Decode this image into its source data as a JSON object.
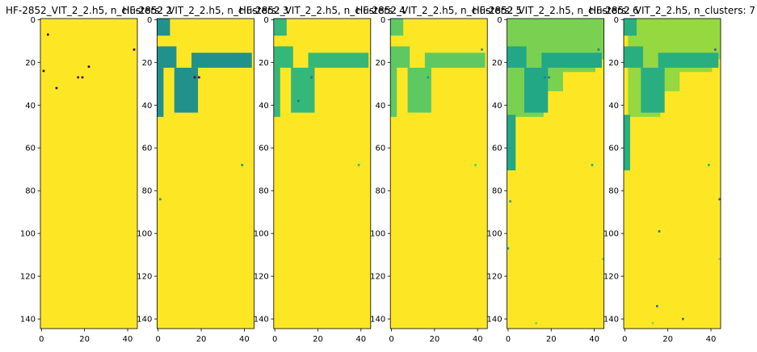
{
  "figure": {
    "background": "#ffffff",
    "colormap": "viridis"
  },
  "chart_data": [
    {
      "type": "heatmap",
      "title": "HF-2852_VIT_2_2.h5, n_clusters: 2",
      "xlabel": "",
      "ylabel": "",
      "xlim": [
        -0.5,
        44.5
      ],
      "ylim": [
        144.5,
        -0.5
      ],
      "x_ticks": [
        0,
        20,
        40
      ],
      "y_ticks": [
        0,
        20,
        40,
        60,
        80,
        100,
        120,
        140
      ],
      "grid": false,
      "n_clusters": 2,
      "background_color": "#fde725",
      "cells": [
        {
          "x": 3,
          "y": 7,
          "color": "#440154"
        },
        {
          "x": 43,
          "y": 14,
          "color": "#440154"
        },
        {
          "x": 22,
          "y": 22,
          "color": "#440154"
        },
        {
          "x": 1,
          "y": 24,
          "color": "#440154"
        },
        {
          "x": 17,
          "y": 27,
          "color": "#440154"
        },
        {
          "x": 19,
          "y": 27,
          "color": "#440154"
        },
        {
          "x": 7,
          "y": 32,
          "color": "#440154"
        }
      ]
    },
    {
      "type": "heatmap",
      "title": "HF-2852_VIT_2_2.h5, n_clusters: 3",
      "xlabel": "",
      "ylabel": "",
      "xlim": [
        -0.5,
        44.5
      ],
      "ylim": [
        144.5,
        -0.5
      ],
      "x_ticks": [
        0,
        20,
        40
      ],
      "y_ticks": [
        0,
        20,
        40,
        60,
        80,
        100,
        120,
        140
      ],
      "grid": false,
      "n_clusters": 3,
      "background_color": "#fde725",
      "regions": [
        {
          "x": [
            0,
            5
          ],
          "y": [
            0,
            7
          ],
          "color": "#21918c"
        },
        {
          "x": [
            0,
            8
          ],
          "y": [
            13,
            22
          ],
          "color": "#21918c"
        },
        {
          "x": [
            0,
            2
          ],
          "y": [
            22,
            45
          ],
          "color": "#21918c"
        },
        {
          "x": [
            16,
            43
          ],
          "y": [
            16,
            22
          ],
          "color": "#21918c"
        },
        {
          "x": [
            8,
            18
          ],
          "y": [
            23,
            43
          ],
          "color": "#21918c"
        }
      ],
      "cells": [
        {
          "x": 17,
          "y": 27,
          "color": "#440154"
        },
        {
          "x": 19,
          "y": 27,
          "color": "#440154"
        },
        {
          "x": 39,
          "y": 68,
          "color": "#21918c"
        },
        {
          "x": 1,
          "y": 84,
          "color": "#21918c"
        }
      ]
    },
    {
      "type": "heatmap",
      "title": "HF-2852_VIT_2_2.h5, n_clusters: 4",
      "xlabel": "",
      "ylabel": "",
      "xlim": [
        -0.5,
        44.5
      ],
      "ylim": [
        144.5,
        -0.5
      ],
      "x_ticks": [
        0,
        20,
        40
      ],
      "y_ticks": [
        0,
        20,
        40,
        60,
        80,
        100,
        120,
        140
      ],
      "grid": false,
      "n_clusters": 4,
      "background_color": "#fde725",
      "regions": [
        {
          "x": [
            0,
            5
          ],
          "y": [
            0,
            7
          ],
          "color": "#35b779"
        },
        {
          "x": [
            0,
            8
          ],
          "y": [
            13,
            22
          ],
          "color": "#35b779"
        },
        {
          "x": [
            0,
            2
          ],
          "y": [
            22,
            45
          ],
          "color": "#35b779"
        },
        {
          "x": [
            16,
            43
          ],
          "y": [
            16,
            22
          ],
          "color": "#35b779"
        },
        {
          "x": [
            8,
            18
          ],
          "y": [
            23,
            43
          ],
          "color": "#35b779"
        }
      ],
      "cells": [
        {
          "x": 17,
          "y": 27,
          "color": "#31688e"
        },
        {
          "x": 11,
          "y": 38,
          "color": "#31688e"
        },
        {
          "x": 39,
          "y": 68,
          "color": "#35b779"
        }
      ]
    },
    {
      "type": "heatmap",
      "title": "HF-2852_VIT_2_2.h5, n_clusters: 5",
      "xlabel": "",
      "ylabel": "",
      "xlim": [
        -0.5,
        44.5
      ],
      "ylim": [
        144.5,
        -0.5
      ],
      "x_ticks": [
        0,
        20,
        40
      ],
      "y_ticks": [
        0,
        20,
        40,
        60,
        80,
        100,
        120,
        140
      ],
      "grid": false,
      "n_clusters": 5,
      "background_color": "#fde725",
      "regions": [
        {
          "x": [
            0,
            5
          ],
          "y": [
            0,
            7
          ],
          "color": "#5ec962"
        },
        {
          "x": [
            0,
            8
          ],
          "y": [
            13,
            22
          ],
          "color": "#5ec962"
        },
        {
          "x": [
            0,
            2
          ],
          "y": [
            22,
            45
          ],
          "color": "#5ec962"
        },
        {
          "x": [
            16,
            43
          ],
          "y": [
            16,
            22
          ],
          "color": "#5ec962"
        },
        {
          "x": [
            8,
            18
          ],
          "y": [
            23,
            43
          ],
          "color": "#5ec962"
        }
      ],
      "cells": [
        {
          "x": 17,
          "y": 27,
          "color": "#21918c"
        },
        {
          "x": 42,
          "y": 14,
          "color": "#21918c"
        },
        {
          "x": 39,
          "y": 68,
          "color": "#5ec962"
        }
      ]
    },
    {
      "type": "heatmap",
      "title": "HF-2852_VIT_2_2.h5, n_clusters: 6",
      "xlabel": "",
      "ylabel": "",
      "xlim": [
        -0.5,
        44.5
      ],
      "ylim": [
        144.5,
        -0.5
      ],
      "x_ticks": [
        0,
        20,
        40
      ],
      "y_ticks": [
        0,
        20,
        40,
        60,
        80,
        100,
        120,
        140
      ],
      "grid": false,
      "n_clusters": 6,
      "background_color": "#fde725",
      "regions": [
        {
          "x": [
            0,
            44
          ],
          "y": [
            0,
            18
          ],
          "color": "#7ad151"
        },
        {
          "x": [
            0,
            40
          ],
          "y": [
            18,
            24
          ],
          "color": "#7ad151"
        },
        {
          "x": [
            0,
            25
          ],
          "y": [
            24,
            33
          ],
          "color": "#7ad151"
        },
        {
          "x": [
            0,
            16
          ],
          "y": [
            33,
            45
          ],
          "color": "#7ad151"
        },
        {
          "x": [
            0,
            8
          ],
          "y": [
            13,
            22
          ],
          "color": "#22a884"
        },
        {
          "x": [
            16,
            43
          ],
          "y": [
            16,
            22
          ],
          "color": "#22a884"
        },
        {
          "x": [
            8,
            18
          ],
          "y": [
            23,
            43
          ],
          "color": "#22a884"
        },
        {
          "x": [
            0,
            3
          ],
          "y": [
            45,
            70
          ],
          "color": "#22a884"
        }
      ],
      "cells": [
        {
          "x": 17,
          "y": 27,
          "color": "#2a788e"
        },
        {
          "x": 19,
          "y": 27,
          "color": "#2a788e"
        },
        {
          "x": 42,
          "y": 14,
          "color": "#2a788e"
        },
        {
          "x": 39,
          "y": 68,
          "color": "#22a884"
        },
        {
          "x": 1,
          "y": 85,
          "color": "#22a884"
        },
        {
          "x": 0,
          "y": 107,
          "color": "#22a884"
        },
        {
          "x": 44,
          "y": 112,
          "color": "#7ad151"
        },
        {
          "x": 13,
          "y": 142,
          "color": "#7ad151"
        }
      ]
    },
    {
      "type": "heatmap",
      "title": "HF-2852_VIT_2_2.h5, n_clusters: 7",
      "xlabel": "",
      "ylabel": "",
      "xlim": [
        -0.5,
        44.5
      ],
      "ylim": [
        144.5,
        -0.5
      ],
      "x_ticks": [
        0,
        20,
        40
      ],
      "y_ticks": [
        0,
        20,
        40,
        60,
        80,
        100,
        120,
        140
      ],
      "grid": false,
      "n_clusters": 7,
      "background_color": "#fde725",
      "regions": [
        {
          "x": [
            2,
            44
          ],
          "y": [
            0,
            18
          ],
          "color": "#95d840"
        },
        {
          "x": [
            2,
            40
          ],
          "y": [
            18,
            24
          ],
          "color": "#95d840"
        },
        {
          "x": [
            2,
            25
          ],
          "y": [
            24,
            33
          ],
          "color": "#95d840"
        },
        {
          "x": [
            2,
            16
          ],
          "y": [
            33,
            45
          ],
          "color": "#95d840"
        },
        {
          "x": [
            0,
            5
          ],
          "y": [
            0,
            7
          ],
          "color": "#29af7f"
        },
        {
          "x": [
            0,
            8
          ],
          "y": [
            13,
            22
          ],
          "color": "#29af7f"
        },
        {
          "x": [
            16,
            43
          ],
          "y": [
            16,
            22
          ],
          "color": "#29af7f"
        },
        {
          "x": [
            8,
            18
          ],
          "y": [
            23,
            43
          ],
          "color": "#29af7f"
        },
        {
          "x": [
            0,
            2
          ],
          "y": [
            45,
            70
          ],
          "color": "#29af7f"
        }
      ],
      "cells": [
        {
          "x": 42,
          "y": 14,
          "color": "#31688e"
        },
        {
          "x": 39,
          "y": 68,
          "color": "#29af7f"
        },
        {
          "x": 44,
          "y": 84,
          "color": "#31688e"
        },
        {
          "x": 16,
          "y": 99,
          "color": "#31688e"
        },
        {
          "x": 44,
          "y": 112,
          "color": "#95d840"
        },
        {
          "x": 15,
          "y": 134,
          "color": "#31688e"
        },
        {
          "x": 27,
          "y": 140,
          "color": "#31688e"
        },
        {
          "x": 13,
          "y": 142,
          "color": "#95d840"
        }
      ]
    }
  ]
}
